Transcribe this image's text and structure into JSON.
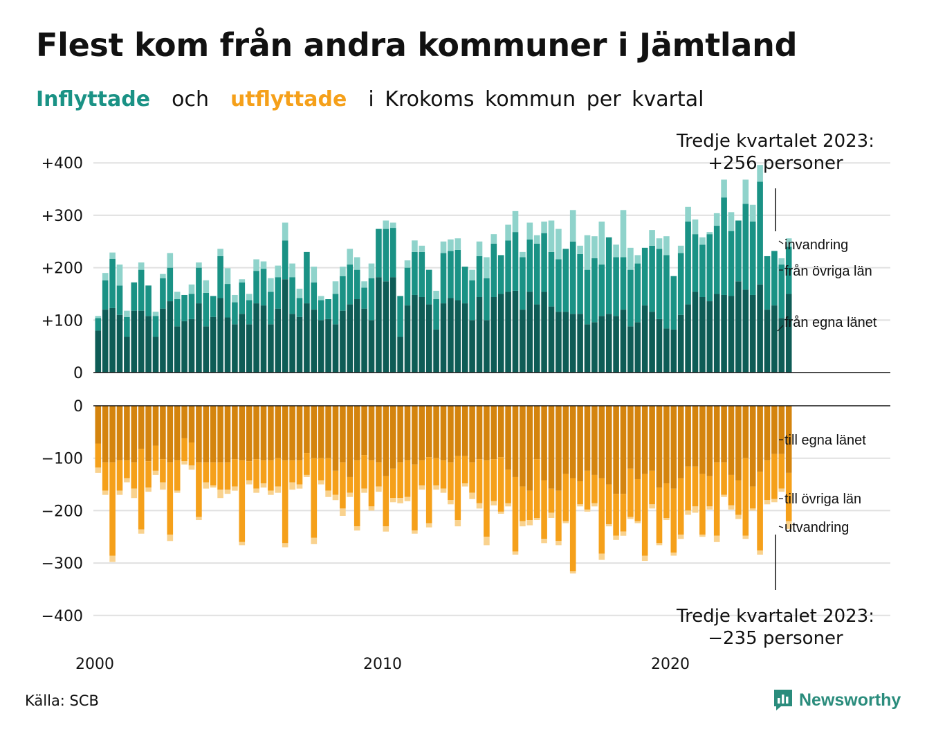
{
  "title": "Flest kom från andra kommuner i Jämtland",
  "subtitle": {
    "in_word": "Inflyttade",
    "and_word": "och",
    "out_word": "utflyttade",
    "rest": "i Krokoms kommun per kvartal"
  },
  "source": "Källa: SCB",
  "brand": "Newsworthy",
  "colors": {
    "in_same_county": "#0e5c56",
    "in_other_counties": "#1a9285",
    "in_immigration": "#8fd3cb",
    "out_same_county": "#d4840e",
    "out_other_counties": "#f5a01a",
    "out_emigration": "#f9d28e",
    "subtitle_in": "#1a9285",
    "subtitle_out": "#f5a01a",
    "brand": "#2a8c7c"
  },
  "chart_data": {
    "type": "bar",
    "stacked": true,
    "x_start": "2000 Q1",
    "x_end": "2023 Q3",
    "x_ticks": [
      "2000",
      "2010",
      "2020"
    ],
    "in_panel": {
      "ylim": [
        0,
        400
      ],
      "y_ticks": [
        "0",
        "+100",
        "+200",
        "+300",
        "+400"
      ],
      "legend": [
        "invandring",
        "från övriga län",
        "från egna länet"
      ],
      "annotation": "Tredje kvartalet 2023:\n+256 personer",
      "series": [
        {
          "name": "från egna länet",
          "values": [
            80,
            120,
            123,
            110,
            68,
            118,
            118,
            108,
            68,
            122,
            136,
            88,
            98,
            102,
            132,
            88,
            106,
            142,
            105,
            92,
            112,
            92,
            132,
            128,
            92,
            122,
            178,
            112,
            106,
            132,
            120,
            100,
            102,
            92,
            118,
            130,
            140,
            122,
            100,
            182,
            174,
            182,
            68,
            128,
            148,
            144,
            130,
            82,
            132,
            142,
            138,
            132,
            100,
            144,
            100,
            144,
            150,
            154,
            156,
            120,
            154,
            130,
            154,
            126,
            116,
            116,
            112,
            112,
            92,
            96,
            108,
            112,
            108,
            120,
            88,
            96,
            128,
            116,
            102,
            84,
            82,
            110,
            130,
            154,
            144,
            136,
            150,
            148,
            146,
            174,
            158,
            148,
            168,
            120,
            128,
            104,
            150
          ]
        },
        {
          "name": "från övriga län",
          "values": [
            24,
            56,
            94,
            56,
            38,
            54,
            78,
            58,
            40,
            58,
            64,
            52,
            50,
            48,
            68,
            64,
            40,
            80,
            64,
            42,
            60,
            46,
            62,
            70,
            62,
            60,
            74,
            70,
            36,
            98,
            52,
            38,
            38,
            58,
            66,
            76,
            56,
            40,
            80,
            92,
            100,
            94,
            78,
            72,
            82,
            86,
            66,
            58,
            96,
            90,
            96,
            70,
            76,
            78,
            80,
            102,
            74,
            98,
            112,
            100,
            100,
            116,
            112,
            104,
            100,
            120,
            138,
            114,
            104,
            122,
            98,
            146,
            112,
            100,
            108,
            112,
            110,
            126,
            134,
            140,
            102,
            118,
            158,
            110,
            100,
            128,
            130,
            186,
            124,
            116,
            164,
            140,
            196,
            102,
            104,
            102,
            90
          ]
        },
        {
          "name": "invandring",
          "values": [
            4,
            14,
            12,
            40,
            12,
            0,
            14,
            0,
            8,
            8,
            28,
            14,
            0,
            18,
            10,
            24,
            0,
            14,
            30,
            14,
            6,
            12,
            22,
            14,
            26,
            22,
            34,
            26,
            18,
            0,
            30,
            8,
            0,
            24,
            18,
            30,
            24,
            12,
            28,
            0,
            16,
            10,
            0,
            14,
            22,
            12,
            0,
            16,
            22,
            22,
            22,
            0,
            20,
            28,
            40,
            18,
            0,
            30,
            40,
            10,
            32,
            16,
            22,
            60,
            58,
            0,
            60,
            16,
            66,
            42,
            82,
            0,
            24,
            90,
            42,
            16,
            0,
            30,
            20,
            36,
            0,
            14,
            28,
            28,
            14,
            4,
            24,
            34,
            36,
            0,
            46,
            32,
            32,
            0,
            0,
            12,
            16
          ]
        }
      ]
    },
    "out_panel": {
      "ylim": [
        -400,
        0
      ],
      "y_ticks": [
        "0",
        "−100",
        "−200",
        "−300",
        "−400"
      ],
      "legend": [
        "till egna länet",
        "till övriga län",
        "utvandring"
      ],
      "annotation": "Tredje kvartalet 2023:\n−235 personer",
      "series": [
        {
          "name": "till egna länet",
          "values": [
            -72,
            -108,
            -108,
            -104,
            -104,
            -108,
            -82,
            -106,
            -76,
            -102,
            -108,
            -104,
            -62,
            -70,
            -108,
            -108,
            -108,
            -108,
            -108,
            -102,
            -104,
            -106,
            -102,
            -104,
            -104,
            -100,
            -104,
            -104,
            -104,
            -90,
            -100,
            -100,
            -100,
            -124,
            -108,
            -136,
            -104,
            -94,
            -104,
            -108,
            -134,
            -120,
            -108,
            -104,
            -112,
            -104,
            -98,
            -100,
            -104,
            -108,
            -96,
            -96,
            -108,
            -102,
            -104,
            -102,
            -98,
            -122,
            -136,
            -154,
            -162,
            -102,
            -142,
            -158,
            -162,
            -130,
            -138,
            -144,
            -124,
            -132,
            -138,
            -150,
            -168,
            -168,
            -120,
            -140,
            -130,
            -124,
            -156,
            -148,
            -158,
            -138,
            -116,
            -116,
            -130,
            -134,
            -108,
            -108,
            -132,
            -142,
            -100,
            -154,
            -126,
            -104,
            -92,
            -92,
            -128
          ]
        },
        {
          "name": "till övriga län",
          "values": [
            -46,
            -54,
            -178,
            -58,
            -34,
            -50,
            -154,
            -50,
            -48,
            -44,
            -138,
            -58,
            -44,
            -44,
            -104,
            -38,
            -44,
            -52,
            -52,
            -52,
            -156,
            -36,
            -56,
            -44,
            -58,
            -54,
            -158,
            -42,
            -46,
            -42,
            -152,
            -42,
            -62,
            -46,
            -88,
            -30,
            -126,
            -64,
            -88,
            -46,
            -96,
            -56,
            -68,
            -70,
            -126,
            -48,
            -126,
            -52,
            -54,
            -72,
            -122,
            -52,
            -58,
            -84,
            -146,
            -80,
            -104,
            -64,
            -142,
            -66,
            -56,
            -112,
            -112,
            -46,
            -96,
            -90,
            -178,
            -44,
            -74,
            -54,
            -144,
            -76,
            -80,
            -72,
            -92,
            -80,
            -156,
            -64,
            -106,
            -66,
            -122,
            -108,
            -84,
            -76,
            -116,
            -58,
            -140,
            -62,
            -58,
            -66,
            -148,
            -42,
            -150,
            -76,
            -86,
            -66,
            -92
          ]
        },
        {
          "name": "utvandring",
          "values": [
            -10,
            -8,
            -12,
            -8,
            -8,
            -18,
            -8,
            -8,
            -8,
            -14,
            -12,
            -4,
            -6,
            -8,
            -6,
            -12,
            -4,
            -16,
            -8,
            -8,
            -6,
            -8,
            -8,
            -8,
            -8,
            -12,
            -8,
            -14,
            -8,
            -4,
            -12,
            -8,
            -12,
            -10,
            -14,
            -8,
            -8,
            -8,
            -8,
            -10,
            -10,
            -8,
            -10,
            -8,
            -6,
            -8,
            -8,
            -8,
            -8,
            -8,
            -12,
            -6,
            -12,
            -10,
            -16,
            -8,
            -4,
            -6,
            -6,
            -10,
            -10,
            -4,
            -8,
            -10,
            -8,
            -4,
            -4,
            -4,
            -4,
            -6,
            -12,
            -4,
            -8,
            -8,
            -4,
            -4,
            -10,
            -8,
            -4,
            -4,
            -6,
            -8,
            -8,
            -12,
            -4,
            -6,
            -12,
            -4,
            -8,
            -8,
            -6,
            -4,
            -8,
            -8,
            -6,
            -6,
            -15
          ]
        }
      ]
    }
  }
}
